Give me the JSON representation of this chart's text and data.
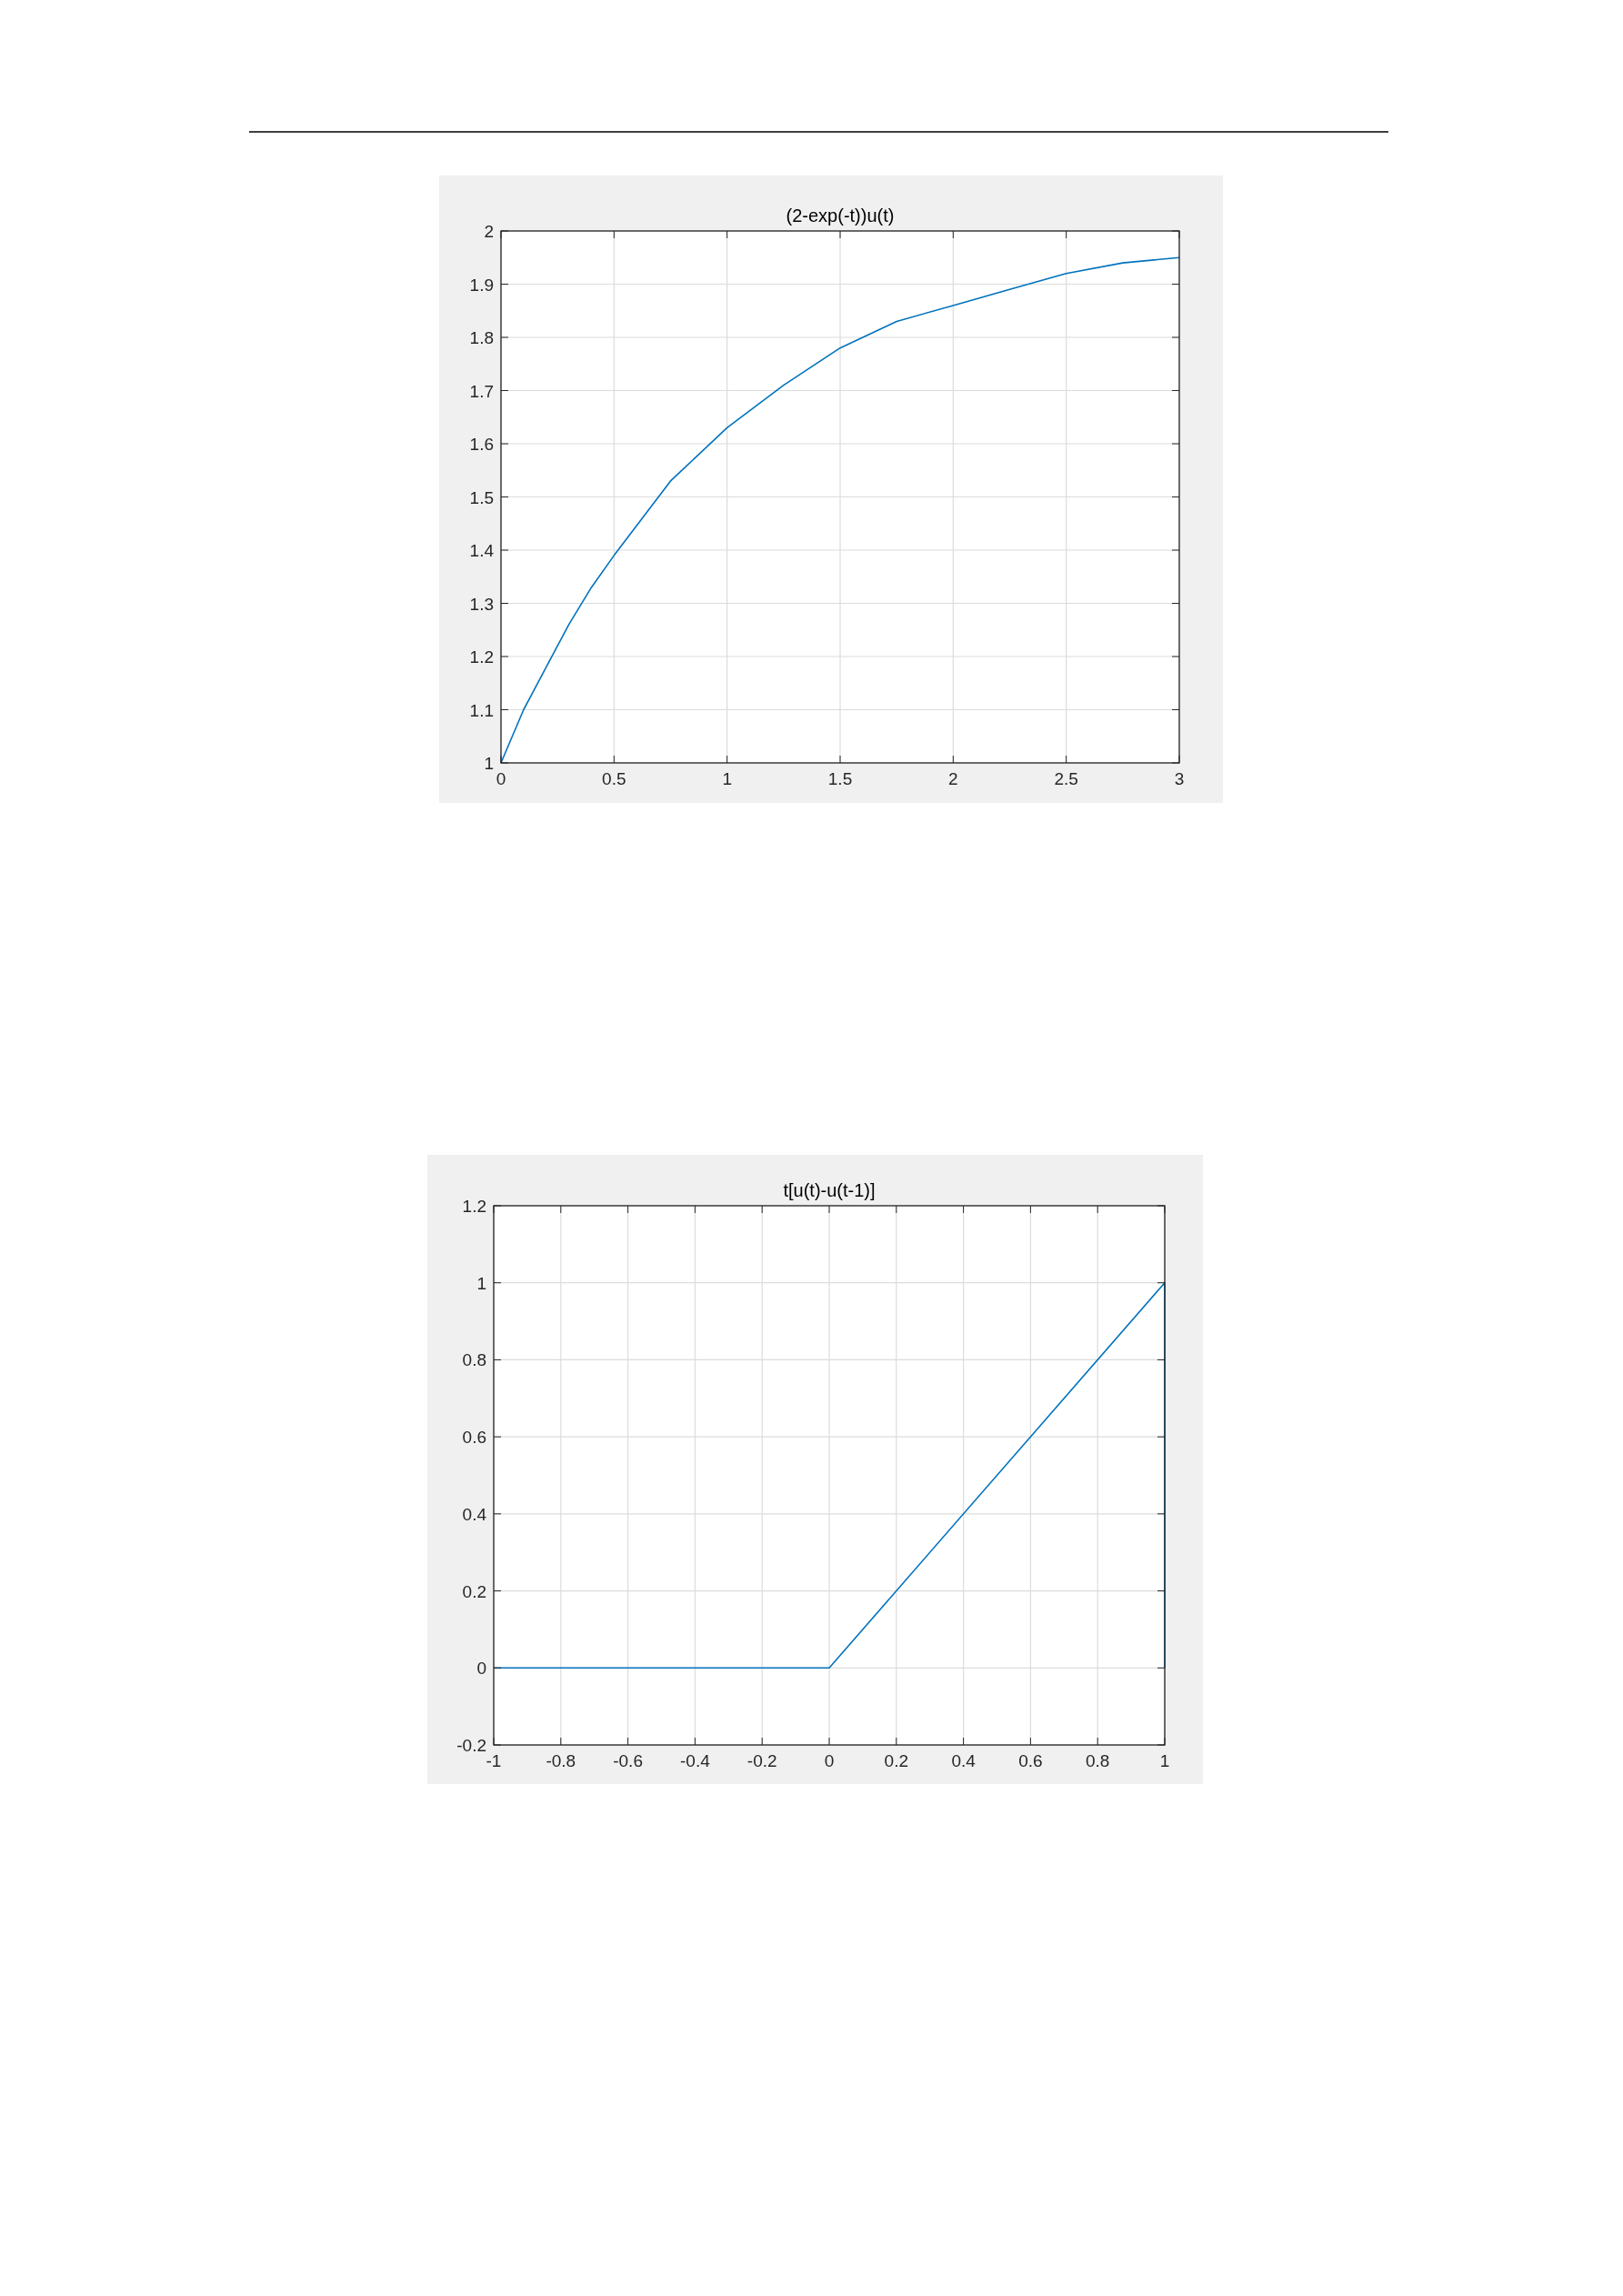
{
  "chart_data": [
    {
      "type": "line",
      "title": "(2-exp(-t))u(t)",
      "x": [
        0,
        0.1,
        0.2,
        0.3,
        0.4,
        0.5,
        0.75,
        1,
        1.25,
        1.5,
        1.75,
        2,
        2.25,
        2.5,
        2.75,
        3
      ],
      "series": [
        {
          "color": "#0072bd",
          "values": [
            1,
            1.1,
            1.18,
            1.26,
            1.33,
            1.39,
            1.53,
            1.63,
            1.71,
            1.78,
            1.83,
            1.86,
            1.89,
            1.92,
            1.94,
            1.95
          ]
        }
      ],
      "xlim": [
        0,
        3
      ],
      "ylim": [
        1,
        2
      ],
      "xticks": [
        0,
        0.5,
        1,
        1.5,
        2,
        2.5,
        3
      ],
      "yticks": [
        1,
        1.1,
        1.2,
        1.3,
        1.4,
        1.5,
        1.6,
        1.7,
        1.8,
        1.9,
        2
      ],
      "grid": true
    },
    {
      "type": "line",
      "title": "t[u(t)-u(t-1)]",
      "x": [
        -1,
        0,
        1,
        1
      ],
      "series": [
        {
          "color": "#0072bd",
          "values": [
            0,
            0,
            1,
            0
          ]
        }
      ],
      "xlim": [
        -1,
        1
      ],
      "ylim": [
        -0.2,
        1.2
      ],
      "xticks": [
        -1,
        -0.8,
        -0.6,
        -0.4,
        -0.2,
        0,
        0.2,
        0.4,
        0.6,
        0.8,
        1
      ],
      "yticks": [
        -0.2,
        0,
        0.2,
        0.4,
        0.6,
        0.8,
        1,
        1.2
      ],
      "grid": true
    }
  ]
}
